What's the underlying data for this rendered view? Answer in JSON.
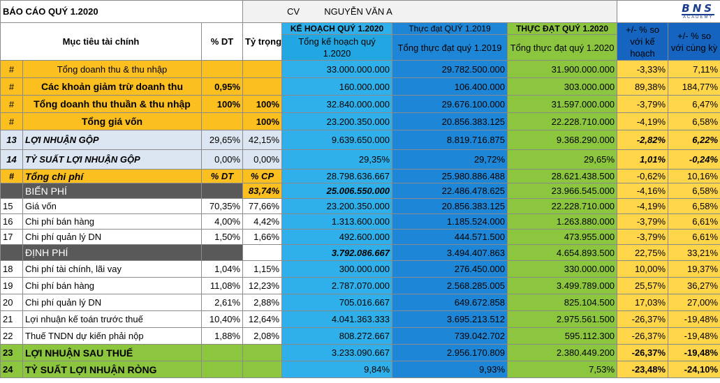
{
  "title": "BÁO CÁO QUÝ 1.2020",
  "role": "CV",
  "person": "NGUYỄN VĂN A",
  "logo_text": "BNS",
  "logo_sub": "ACADEMY",
  "headers": {
    "objective": "Mục tiêu tài chính",
    "pct_dt": "% DT",
    "weight": "Tỷ trọng",
    "plan_group": "KẾ HOẠCH QUÝ 1.2020",
    "plan_sub": "Tổng kế hoạch quý 1.2020",
    "act19_group": "Thực đạt QUÝ 1.2019",
    "act19_sub": "Tổng thực đạt quý 1.2019",
    "act20_group": "THỰC ĐẠT QUÝ 1.2020",
    "act20_sub": "Tổng thực đạt quý 1.2020",
    "vs_plan": "+/- % so với kế hoạch",
    "vs_same": "+/- % so với cùng kỳ"
  },
  "rows": [
    {
      "idx": "#",
      "label": "Tổng doanh thu & thu nhập",
      "dt": "",
      "tt": "",
      "plan": "33.000.000.000",
      "a19": "29.782.500.000",
      "a20": "31.900.000.000",
      "p1": "-3,33%",
      "p2": "7,11%"
    },
    {
      "idx": "#",
      "label": "Các khoản giảm trừ doanh thu",
      "dt": "0,95%",
      "tt": "",
      "plan": "160.000.000",
      "a19": "106.400.000",
      "a20": "303.000.000",
      "p1": "89,38%",
      "p2": "184,77%"
    },
    {
      "idx": "#",
      "label": "Tổng doanh thu thuần & thu nhập",
      "dt": "100%",
      "tt": "100%",
      "plan": "32.840.000.000",
      "a19": "29.676.100.000",
      "a20": "31.597.000.000",
      "p1": "-3,79%",
      "p2": "6,47%"
    },
    {
      "idx": "#",
      "label": "Tổng giá vốn",
      "dt": "",
      "tt": "100%",
      "plan": "23.200.350.000",
      "a19": "20.856.383.125",
      "a20": "22.228.710.000",
      "p1": "-4,19%",
      "p2": "6,58%"
    },
    {
      "idx": "13",
      "label": "LỢI NHUẬN GỘP",
      "dt": "29,65%",
      "tt": "42,15%",
      "plan": "9.639.650.000",
      "a19": "8.819.716.875",
      "a20": "9.368.290.000",
      "p1": "-2,82%",
      "p2": "6,22%"
    },
    {
      "idx": "14",
      "label": "TỶ SUẤT LỢI NHUẬN GỘP",
      "dt": "0,00%",
      "tt": "0,00%",
      "plan": "29,35%",
      "a19": "29,72%",
      "a20": "29,65%",
      "p1": "1,01%",
      "p2": "-0,24%"
    },
    {
      "idx": "#",
      "label": "Tổng chi phí",
      "dt": "% DT",
      "tt": "% CP",
      "plan": "28.798.636.667",
      "a19": "25.980.886.488",
      "a20": "28.621.438.500",
      "p1": "-0,62%",
      "p2": "10,16%"
    },
    {
      "idx": "",
      "label": "BIẾN PHÍ",
      "dt": "",
      "tt": "83,74%",
      "plan": "25.006.550.000",
      "a19": "22.486.478.625",
      "a20": "23.966.545.000",
      "p1": "-4,16%",
      "p2": "6,58%"
    },
    {
      "idx": "15",
      "label": "Giá vốn",
      "dt": "70,35%",
      "tt": "77,66%",
      "plan": "23.200.350.000",
      "a19": "20.856.383.125",
      "a20": "22.228.710.000",
      "p1": "-4,19%",
      "p2": "6,58%"
    },
    {
      "idx": "16",
      "label": "Chi phí bán hàng",
      "dt": "4,00%",
      "tt": "4,42%",
      "plan": "1.313.600.000",
      "a19": "1.185.524.000",
      "a20": "1.263.880.000",
      "p1": "-3,79%",
      "p2": "6,61%"
    },
    {
      "idx": "17",
      "label": "Chi phí quản lý DN",
      "dt": "1,50%",
      "tt": "1,66%",
      "plan": "492.600.000",
      "a19": "444.571.500",
      "a20": "473.955.000",
      "p1": "-3,79%",
      "p2": "6,61%"
    },
    {
      "idx": "",
      "label": "ĐỊNH PHÍ",
      "dt": "",
      "tt": "",
      "plan": "3.792.086.667",
      "a19": "3.494.407.863",
      "a20": "4.654.893.500",
      "p1": "22,75%",
      "p2": "33,21%"
    },
    {
      "idx": "18",
      "label": "Chi phí tài chính, lãi vay",
      "dt": "1,04%",
      "tt": "1,15%",
      "plan": "300.000.000",
      "a19": "276.450.000",
      "a20": "330.000.000",
      "p1": "10,00%",
      "p2": "19,37%"
    },
    {
      "idx": "19",
      "label": "Chi phí bán hàng",
      "dt": "11,08%",
      "tt": "12,23%",
      "plan": "2.787.070.000",
      "a19": "2.568.285.005",
      "a20": "3.499.789.000",
      "p1": "25,57%",
      "p2": "36,27%"
    },
    {
      "idx": "20",
      "label": "Chi phí quản lý DN",
      "dt": "2,61%",
      "tt": "2,88%",
      "plan": "705.016.667",
      "a19": "649.672.858",
      "a20": "825.104.500",
      "p1": "17,03%",
      "p2": "27,00%"
    },
    {
      "idx": "21",
      "label": "Lợi nhuận kế toán trước thuế",
      "dt": "10,40%",
      "tt": "12,64%",
      "plan": "4.041.363.333",
      "a19": "3.695.213.512",
      "a20": "2.975.561.500",
      "p1": "-26,37%",
      "p2": "-19,48%"
    },
    {
      "idx": "22",
      "label": "Thuế TNDN dự kiến phải nộp",
      "dt": "1,88%",
      "tt": "2,08%",
      "plan": "808.272.667",
      "a19": "739.042.702",
      "a20": "595.112.300",
      "p1": "-26,37%",
      "p2": "-19,48%"
    },
    {
      "idx": "23",
      "label": "LỢI NHUẬN SAU THUẾ",
      "dt": "",
      "tt": "",
      "plan": "3.233.090.667",
      "a19": "2.956.170.809",
      "a20": "2.380.449.200",
      "p1": "-26,37%",
      "p2": "-19,48%"
    },
    {
      "idx": "24",
      "label": "TỶ SUẤT LỢI NHUẬN RÒNG",
      "dt": "",
      "tt": "",
      "plan": "9,84%",
      "a19": "9,93%",
      "a20": "7,53%",
      "p1": "-23,48%",
      "p2": "-24,10%"
    }
  ],
  "colors": {
    "orange": "#fbbf1f",
    "plan_blue": "#2fb0ea",
    "act19_blue": "#1e86d6",
    "green": "#8cc63f",
    "pct_yellow": "#ffd54a",
    "dark": "#595959"
  }
}
